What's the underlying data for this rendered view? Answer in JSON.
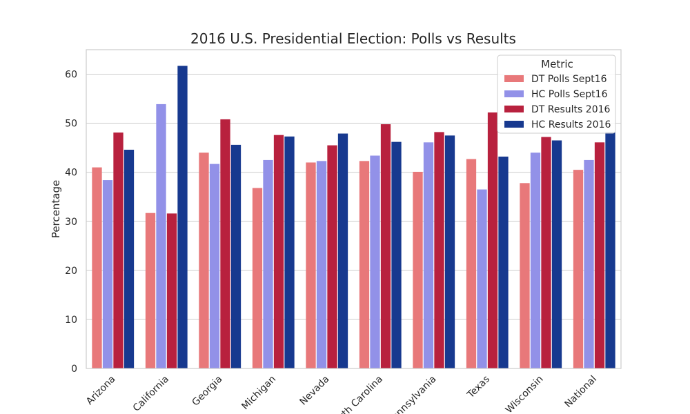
{
  "chart_data": {
    "type": "bar",
    "title": "2016 U.S. Presidential Election: Polls vs Results",
    "xlabel": "",
    "ylabel": "Percentage",
    "ylim": [
      0,
      65
    ],
    "yticks": [
      0,
      10,
      20,
      30,
      40,
      50,
      60
    ],
    "grid": true,
    "legend_title": "Metric",
    "legend_position": "top-right",
    "categories": [
      "Arizona",
      "California",
      "Georgia",
      "Michigan",
      "Nevada",
      "North Carolina",
      "Pennsylvania",
      "Texas",
      "Wisconsin",
      "National"
    ],
    "series": [
      {
        "name": "DT Polls Sept16",
        "color": "#e8787a",
        "values": [
          41.0,
          31.7,
          44.0,
          36.8,
          42.0,
          42.3,
          40.1,
          42.7,
          37.8,
          40.5
        ]
      },
      {
        "name": "HC Polls Sept16",
        "color": "#9291e8",
        "values": [
          38.4,
          53.9,
          41.7,
          42.5,
          42.3,
          43.4,
          46.1,
          36.5,
          44.0,
          42.5
        ]
      },
      {
        "name": "DT Results 2016",
        "color": "#b8213e",
        "values": [
          48.1,
          31.6,
          50.8,
          47.6,
          45.5,
          49.8,
          48.2,
          52.2,
          47.2,
          46.1
        ]
      },
      {
        "name": "HC Results 2016",
        "color": "#17398f",
        "values": [
          44.6,
          61.7,
          45.6,
          47.3,
          47.9,
          46.2,
          47.5,
          43.2,
          46.5,
          48.2
        ]
      }
    ]
  }
}
